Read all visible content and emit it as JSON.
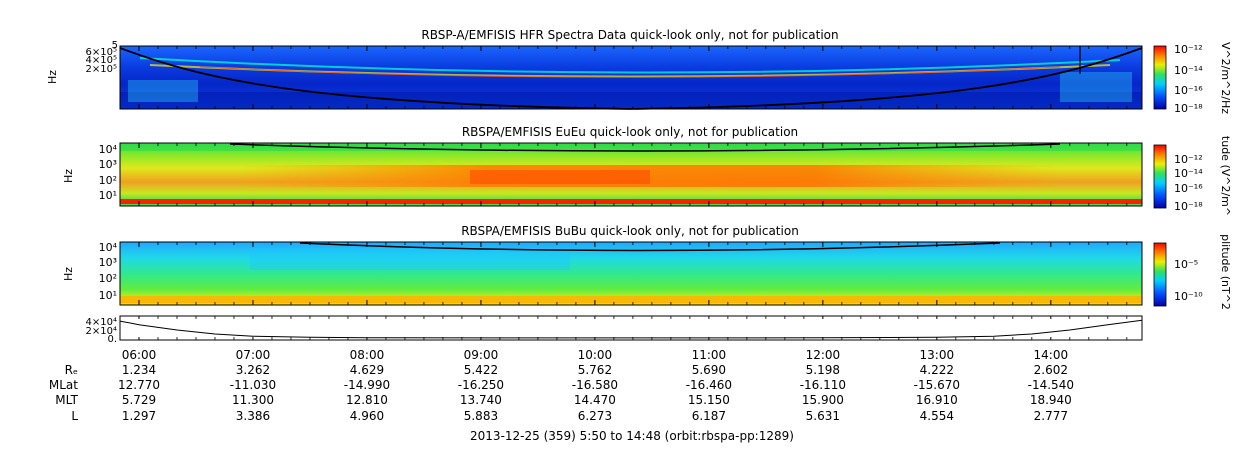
{
  "chart_data": [
    {
      "type": "heatmap",
      "title": "RBSP-A/EMFISIS  HFR Spectra Data quick-look only, not for publication",
      "ylabel": "Hz",
      "ylim": [
        10000,
        500000
      ],
      "yscale": "log",
      "yticks": [
        "6×10⁵",
        "4×10⁵",
        "2×10⁵"
      ],
      "ytick_top": "5",
      "colorbar_label": "V^2/m^2/Hz",
      "colorbar_ticks": [
        "10⁻¹²",
        "10⁻¹⁴",
        "10⁻¹⁶",
        "10⁻¹⁸"
      ],
      "colorbar_range": [
        1e-18,
        1e-12
      ]
    },
    {
      "type": "heatmap",
      "title": "RBSPA/EMFISIS  EuEu quick-look only, not for publication",
      "ylabel": "Hz",
      "yscale": "log",
      "yticks": [
        "10⁴",
        "10³",
        "10²",
        "10¹"
      ],
      "colorbar_label": "tude (V^2/m^",
      "colorbar_ticks": [
        "10⁻¹²",
        "10⁻¹⁴",
        "10⁻¹⁶",
        "10⁻¹⁸"
      ],
      "colorbar_range": [
        1e-18,
        1e-12
      ]
    },
    {
      "type": "heatmap",
      "title": "RBSPA/EMFISIS  BuBu quick-look only, not for publication",
      "ylabel": "Hz",
      "yscale": "log",
      "yticks": [
        "10⁴",
        "10³",
        "10²",
        "10¹"
      ],
      "colorbar_label": "plitude (nT^2",
      "colorbar_ticks": [
        "10⁻⁵",
        "10⁻¹⁰"
      ]
    },
    {
      "type": "line",
      "ylabel": "",
      "yticks": [
        "4×10⁴",
        "2×10⁴",
        "0."
      ],
      "ylim": [
        0,
        45000
      ],
      "x": [
        "05:50",
        "06:00",
        "06:20",
        "06:40",
        "07:00",
        "07:30",
        "08:00",
        "09:00",
        "10:00",
        "11:00",
        "12:00",
        "13:00",
        "13:30",
        "13:50",
        "14:10",
        "14:30",
        "14:48"
      ],
      "values": [
        38000,
        30000,
        18000,
        9000,
        4000,
        1500,
        700,
        300,
        200,
        250,
        500,
        1800,
        4000,
        9000,
        18000,
        30000,
        40000
      ]
    }
  ],
  "time_axis": {
    "labels": [
      "06:00",
      "07:00",
      "08:00",
      "09:00",
      "10:00",
      "11:00",
      "12:00",
      "13:00",
      "14:00"
    ]
  },
  "ephemeris": {
    "row_labels": [
      "Rₑ",
      "MLat",
      "MLT",
      "L"
    ],
    "rows": [
      [
        "1.234",
        "3.262",
        "4.629",
        "5.422",
        "5.762",
        "5.690",
        "5.198",
        "4.222",
        "2.602"
      ],
      [
        "12.770",
        "-11.030",
        "-14.990",
        "-16.250",
        "-16.580",
        "-16.460",
        "-16.110",
        "-15.670",
        "-14.540"
      ],
      [
        "5.729",
        "11.300",
        "12.810",
        "13.740",
        "14.470",
        "15.150",
        "15.900",
        "16.910",
        "18.940"
      ],
      [
        "1.297",
        "3.386",
        "4.960",
        "5.883",
        "6.273",
        "6.187",
        "5.631",
        "4.554",
        "2.777"
      ]
    ]
  },
  "footer": "2013-12-25 (359) 5:50 to 14:48 (orbit:rbspa-pp:1289)"
}
